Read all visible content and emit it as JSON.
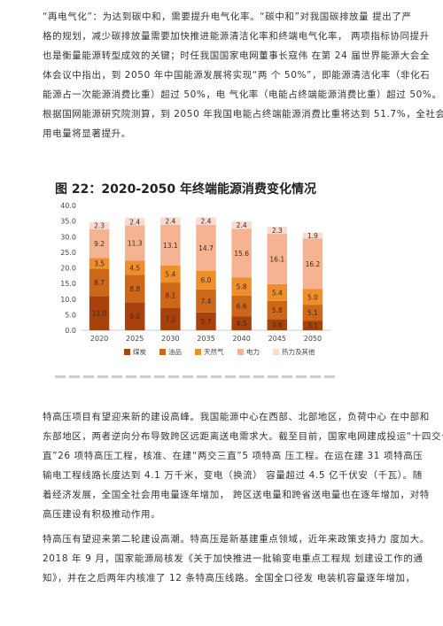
{
  "paragraph1": [
    "“再电气化”：为达到碳中和，需要提升电气化率。“碳中和”对我国碳排放量 提出了严",
    "格的规划，减少碳排放量需要加快推进能源清洁化率和终端电气化率， 两项指标协同提升",
    "也是衡量能源转型成效的关键；时任我国国家电网董事长寇伟 在第 24 届世界能源大会全",
    "体会议中指出，到 2050 年中国能源发展将实现“两 个 50%”，即能源清洁化率（非化石",
    "能源占一次能源消费比重）超过 50%，电 气化率（电能占终端能源消费比重）超过 50%。",
    "根据国网能源研究院测算，到 2050 年我国电能占终端能源消费比重将达到 51.7%，全社会",
    "用电量将显著提升。"
  ],
  "figure_title": "图 22：2020-2050 年终端能源消费变化情况",
  "chart_data": {
    "type": "bar",
    "stacked": true,
    "categories": [
      "2020",
      "2025",
      "2030",
      "2035",
      "2040",
      "2045",
      "2050"
    ],
    "series": [
      {
        "name": "煤炭",
        "color": "#a9410d",
        "values": [
          11.0,
          9.0,
          7.2,
          5.7,
          4.5,
          3.6,
          3.1
        ]
      },
      {
        "name": "油品",
        "color": "#cf6719",
        "values": [
          8.7,
          8.8,
          8.1,
          7.4,
          6.6,
          5.8,
          5.1
        ]
      },
      {
        "name": "天然气",
        "color": "#ee8f2c",
        "values": [
          3.5,
          4.5,
          5.4,
          6.0,
          5.8,
          5.4,
          5.0
        ]
      },
      {
        "name": "电力",
        "color": "#f5b391",
        "values": [
          9.2,
          11.3,
          13.1,
          14.7,
          15.6,
          16.1,
          16.2
        ]
      },
      {
        "name": "热力及其他",
        "color": "#fadbd0",
        "values": [
          2.3,
          2.4,
          2.4,
          2.4,
          2.4,
          2.3,
          1.9
        ]
      }
    ],
    "yticks": [
      "0.0",
      "5.0",
      "10.0",
      "15.0",
      "20.0",
      "25.0",
      "30.0",
      "35.0",
      "40.0"
    ],
    "ylim": [
      0,
      40
    ],
    "legend_position": "bottom"
  },
  "paragraph2": [
    "特高压项目有望迎来新的建设高峰。我国能源中心在西部、北部地区，负荷中心 在中部和",
    "东部地区，两者逆向分布导致跨区远距离送电需求大。截至目前，国家电网建成投运“十四交十二",
    "直”26 项特高压工程，核准、在建“两交三直”5 项特高 压工程。在运在建 31 项特高压",
    "输电工程线路长度达到 4.1 万千米，变电（换流） 容量超过 4.5 亿千伏安（千瓦）。随",
    "着经济发展，全国全社会用电量逐年增加， 跨区送电量和跨省送电量也在逐年增加，对特",
    "高压建设有积极推动作用。"
  ],
  "paragraph3": [
    "特高压有望迎来第二轮建设高潮。特高压是新基建重点领域，近年来政策支持力 度加大。",
    "2018 年 9 月，国家能源局核发《关于加快推进一批输变电重点工程规 划建设工作的通",
    "知》，并在之后两年内核准了 12 条特高压线路。全国全口径发 电装机容量逐年增加，"
  ]
}
